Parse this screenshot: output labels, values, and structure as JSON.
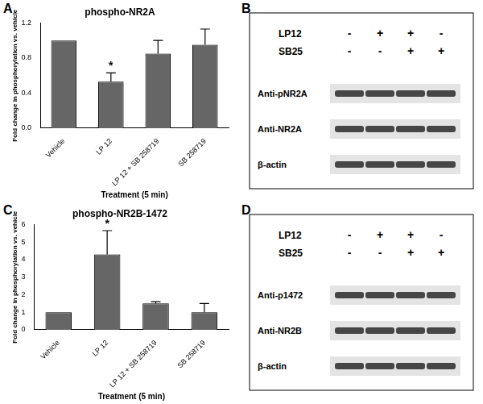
{
  "panel_labels": [
    "A",
    "B",
    "C",
    "D"
  ],
  "chart_data": [
    {
      "type": "bar",
      "title": "phospho-NR2A",
      "y_label": "Fold change in phosphorylation vs. vehicle",
      "x_label": "Treatment (5 min)",
      "categories": [
        "Vehicle",
        "LP 12",
        "LP 12 + SB 258719",
        "SB 258719"
      ],
      "values": [
        1.0,
        0.53,
        0.85,
        0.95
      ],
      "errors": [
        0,
        0.1,
        0.15,
        0.18
      ],
      "color": "#666666",
      "ylim": [
        0,
        1.2
      ],
      "yticks": [
        {
          "value": 0,
          "label": "0.0"
        },
        0.4,
        0.8,
        1.2
      ],
      "grid": false,
      "annotations": [
        {
          "category": "LP 12",
          "text": "*"
        }
      ]
    },
    {
      "type": "bar",
      "title": "phospho-NR2B-1472",
      "y_label": "Fold change in phosphorylation vs. vehicle",
      "x_label": "Treatment (5 min)",
      "categories": [
        "Vehicle",
        "LP 12",
        "LP 12 + SB 258719",
        "SB 258719"
      ],
      "values": [
        1.0,
        4.3,
        1.5,
        1.0
      ],
      "errors": [
        0,
        1.35,
        0.1,
        0.5
      ],
      "color": "#666666",
      "ylim": [
        0,
        6
      ],
      "yticks": [
        0,
        1,
        2,
        3,
        4,
        5,
        6
      ],
      "grid": false,
      "annotations": [
        {
          "category": "LP 12",
          "text": "*"
        }
      ]
    }
  ],
  "blots": [
    {
      "treatments": [
        {
          "name": "LP12",
          "signs": [
            "-",
            "+",
            "+",
            "-"
          ]
        },
        {
          "name": "SB25",
          "signs": [
            "-",
            "-",
            "+",
            "+"
          ]
        }
      ],
      "rows": [
        "Anti-pNR2A",
        "Anti-NR2A",
        "β-actin"
      ]
    },
    {
      "treatments": [
        {
          "name": "LP12",
          "signs": [
            "-",
            "+",
            "+",
            "-"
          ]
        },
        {
          "name": "SB25",
          "signs": [
            "-",
            "-",
            "+",
            "+"
          ]
        }
      ],
      "rows": [
        "Anti-p1472",
        "Anti-NR2B",
        "β-actin"
      ]
    }
  ]
}
